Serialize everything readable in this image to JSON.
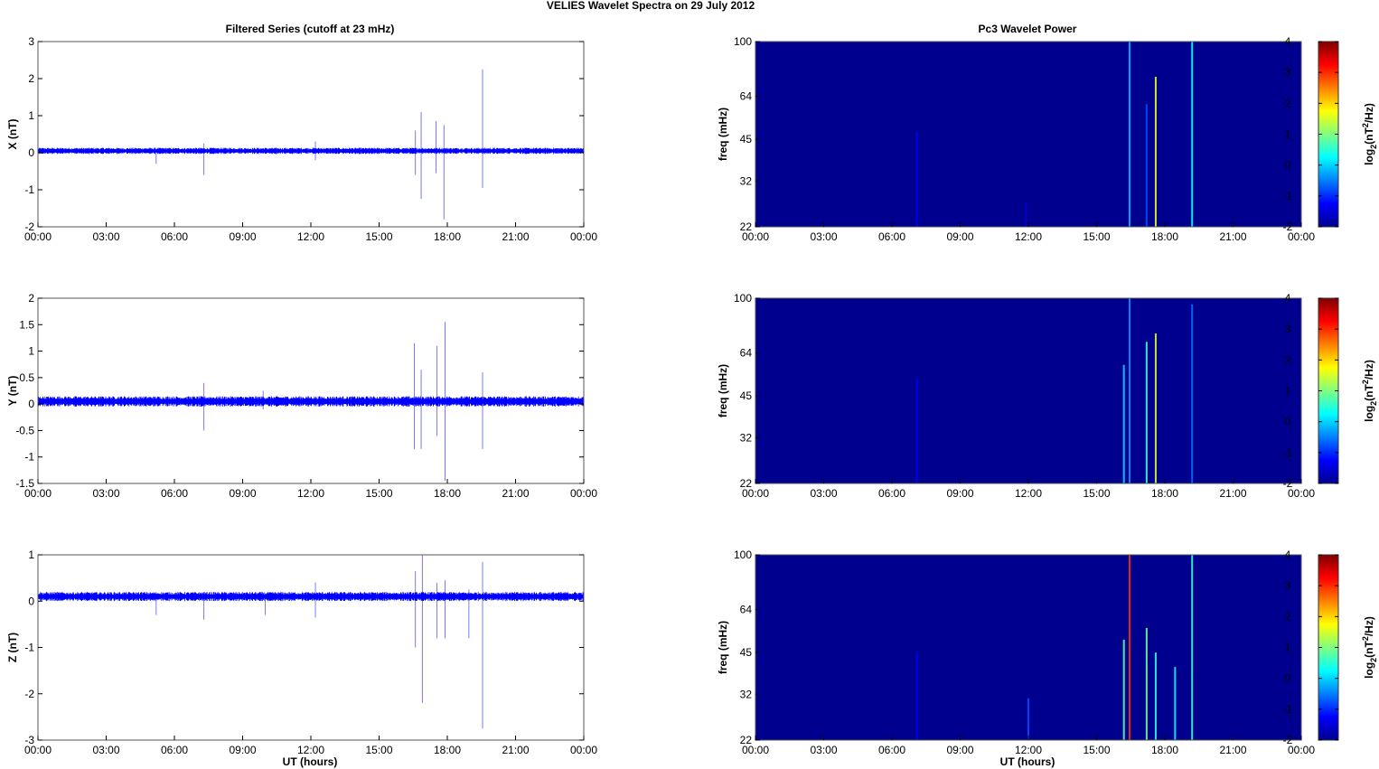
{
  "figure_title": "VELIES Wavelet Spectra on 29 July      2012",
  "left_title": "Filtered Series (cutoff at 23 mHz)",
  "right_title": "Pc3 Wavelet Power",
  "xlabel": "UT (hours)",
  "freq_label": "freq (mHz)",
  "colors": {
    "trace": "#0000ff",
    "background": "#00008f"
  },
  "chart_data": [
    {
      "type": "line",
      "component": "X",
      "ylabel": "X (nT)",
      "ylim": [
        -2,
        3
      ],
      "yticks": [
        -2,
        -1,
        0,
        1,
        2,
        3
      ],
      "xlim": [
        0,
        24
      ],
      "xticks": [
        "00:00",
        "03:00",
        "06:00",
        "09:00",
        "12:00",
        "15:00",
        "18:00",
        "21:00",
        "00:00"
      ],
      "baseline": 0.05,
      "noise_amplitude": 0.06,
      "spikes": [
        {
          "t": 5.2,
          "min": -0.3,
          "max": 0.1
        },
        {
          "t": 7.3,
          "min": -0.6,
          "max": 0.25
        },
        {
          "t": 12.2,
          "min": -0.2,
          "max": 0.3
        },
        {
          "t": 16.6,
          "min": -0.6,
          "max": 0.6
        },
        {
          "t": 16.85,
          "min": -1.25,
          "max": 1.1
        },
        {
          "t": 17.5,
          "min": -0.55,
          "max": 0.85
        },
        {
          "t": 17.85,
          "min": -1.8,
          "max": 0.75
        },
        {
          "t": 19.55,
          "min": -0.95,
          "max": 2.25
        }
      ]
    },
    {
      "type": "line",
      "component": "Y",
      "ylabel": "Y (nT)",
      "ylim": [
        -1.5,
        2
      ],
      "yticks": [
        -1.5,
        -1,
        -0.5,
        0,
        0.5,
        1,
        1.5,
        2
      ],
      "xlim": [
        0,
        24
      ],
      "xticks": [
        "00:00",
        "03:00",
        "06:00",
        "09:00",
        "12:00",
        "15:00",
        "18:00",
        "21:00",
        "00:00"
      ],
      "baseline": 0.05,
      "noise_amplitude": 0.07,
      "spikes": [
        {
          "t": 7.3,
          "min": -0.5,
          "max": 0.4
        },
        {
          "t": 9.9,
          "min": -0.1,
          "max": 0.25
        },
        {
          "t": 16.55,
          "min": -0.85,
          "max": 1.15
        },
        {
          "t": 16.85,
          "min": -0.85,
          "max": 0.65
        },
        {
          "t": 17.55,
          "min": -0.6,
          "max": 1.1
        },
        {
          "t": 17.9,
          "min": -1.45,
          "max": 1.55
        },
        {
          "t": 19.55,
          "min": -0.85,
          "max": 0.6
        }
      ]
    },
    {
      "type": "line",
      "component": "Z",
      "ylabel": "Z (nT)",
      "ylim": [
        -3,
        1
      ],
      "yticks": [
        -3,
        -2,
        -1,
        0,
        1
      ],
      "xlim": [
        0,
        24
      ],
      "xticks": [
        "00:00",
        "03:00",
        "06:00",
        "09:00",
        "12:00",
        "15:00",
        "18:00",
        "21:00",
        "00:00"
      ],
      "baseline": 0.1,
      "noise_amplitude": 0.07,
      "spikes": [
        {
          "t": 5.2,
          "min": -0.3,
          "max": 0.15
        },
        {
          "t": 7.3,
          "min": -0.4,
          "max": 0.2
        },
        {
          "t": 10.0,
          "min": -0.3,
          "max": 0.1
        },
        {
          "t": 12.2,
          "min": -0.35,
          "max": 0.4
        },
        {
          "t": 16.6,
          "min": -1.0,
          "max": 0.65
        },
        {
          "t": 16.9,
          "min": -2.2,
          "max": 1.0
        },
        {
          "t": 17.55,
          "min": -0.8,
          "max": 0.4
        },
        {
          "t": 17.9,
          "min": -0.8,
          "max": 0.45
        },
        {
          "t": 18.95,
          "min": -0.8,
          "max": 0.25
        },
        {
          "t": 19.55,
          "min": -2.75,
          "max": 0.85
        }
      ]
    },
    {
      "type": "heatmap",
      "component": "X",
      "yticks": [
        22,
        32,
        45,
        64,
        100
      ],
      "ylim": [
        22,
        100
      ],
      "yscale": "log",
      "xlim": [
        0,
        24
      ],
      "xticks": [
        "00:00",
        "03:00",
        "06:00",
        "09:00",
        "12:00",
        "15:00",
        "18:00",
        "21:00",
        "00:00"
      ],
      "colorbar_ticks": [
        -2,
        -1,
        0,
        1,
        2,
        3,
        4
      ],
      "colorbar_label": "log2(nT2/Hz)",
      "streaks": [
        {
          "t": 7.1,
          "fmin": 22,
          "fmax": 48,
          "power": -1.3
        },
        {
          "t": 11.9,
          "fmin": 22,
          "fmax": 27,
          "power": -1.5
        },
        {
          "t": 16.45,
          "fmin": 22,
          "fmax": 100,
          "power": -0.2
        },
        {
          "t": 17.2,
          "fmin": 22,
          "fmax": 60,
          "power": -0.8
        },
        {
          "t": 17.6,
          "fmin": 22,
          "fmax": 75,
          "power": 1.6
        },
        {
          "t": 19.2,
          "fmin": 22,
          "fmax": 100,
          "power": 0.3
        }
      ]
    },
    {
      "type": "heatmap",
      "component": "Y",
      "yticks": [
        22,
        32,
        45,
        64,
        100
      ],
      "ylim": [
        22,
        100
      ],
      "yscale": "log",
      "xlim": [
        0,
        24
      ],
      "xticks": [
        "00:00",
        "03:00",
        "06:00",
        "09:00",
        "12:00",
        "15:00",
        "18:00",
        "21:00",
        "00:00"
      ],
      "colorbar_ticks": [
        -2,
        -1,
        0,
        1,
        2,
        3,
        4
      ],
      "colorbar_label": "log2(nT2/Hz)",
      "streaks": [
        {
          "t": 7.1,
          "fmin": 22,
          "fmax": 52,
          "power": -1.3
        },
        {
          "t": 16.2,
          "fmin": 22,
          "fmax": 58,
          "power": 0.0
        },
        {
          "t": 16.45,
          "fmin": 22,
          "fmax": 100,
          "power": -0.4
        },
        {
          "t": 17.2,
          "fmin": 22,
          "fmax": 70,
          "power": 0.6
        },
        {
          "t": 17.6,
          "fmin": 22,
          "fmax": 75,
          "power": 1.5
        },
        {
          "t": 19.2,
          "fmin": 22,
          "fmax": 95,
          "power": -0.6
        }
      ]
    },
    {
      "type": "heatmap",
      "component": "Z",
      "yticks": [
        22,
        32,
        45,
        64,
        100
      ],
      "ylim": [
        22,
        100
      ],
      "yscale": "log",
      "xlim": [
        0,
        24
      ],
      "xticks": [
        "00:00",
        "03:00",
        "06:00",
        "09:00",
        "12:00",
        "15:00",
        "18:00",
        "21:00",
        "00:00"
      ],
      "colorbar_ticks": [
        -2,
        -1,
        0,
        1,
        2,
        3,
        4
      ],
      "colorbar_label": "log2(nT2/Hz)",
      "streaks": [
        {
          "t": 7.1,
          "fmin": 22,
          "fmax": 45,
          "power": -1.3
        },
        {
          "t": 12.0,
          "fmin": 22,
          "fmax": 31,
          "power": -0.8
        },
        {
          "t": 16.2,
          "fmin": 22,
          "fmax": 50,
          "power": 0.8
        },
        {
          "t": 16.45,
          "fmin": 22,
          "fmax": 100,
          "power": 3.0
        },
        {
          "t": 17.2,
          "fmin": 22,
          "fmax": 55,
          "power": 0.9
        },
        {
          "t": 17.6,
          "fmin": 22,
          "fmax": 45,
          "power": 0.5
        },
        {
          "t": 18.45,
          "fmin": 22,
          "fmax": 40,
          "power": 0.2
        },
        {
          "t": 19.2,
          "fmin": 22,
          "fmax": 100,
          "power": 0.6
        }
      ]
    }
  ]
}
